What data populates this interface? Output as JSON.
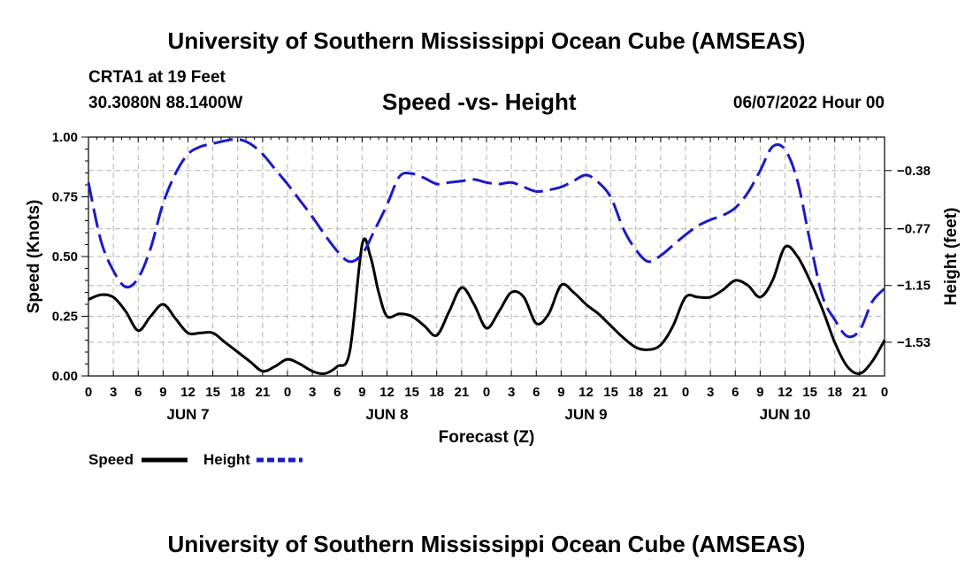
{
  "header": {
    "title": "University of Southern Mississippi Ocean Cube (AMSEAS)",
    "station": "CRTA1 at 19 Feet",
    "coords": "30.3080N  88.1400W",
    "chart_title": "Speed -vs- Height",
    "date": "06/07/2022 Hour 00"
  },
  "footer": {
    "title": "University of Southern Mississippi Ocean Cube (AMSEAS)"
  },
  "legend": {
    "speed_label": "Speed",
    "height_label": "Height"
  },
  "colors": {
    "speed": "#000000",
    "height": "#1a1ac8",
    "grid": "#b4b4b4"
  },
  "chart_data": {
    "type": "line",
    "title": "Speed -vs- Height",
    "xlabel": "Forecast (Z)",
    "ylabel": "Speed (Knots)",
    "y2label": "Height (feet)",
    "xlim": [
      0,
      96
    ],
    "ylim": [
      0,
      1.0
    ],
    "y2lim": [
      -1.756,
      -0.156
    ],
    "x_ticks": [
      0,
      3,
      6,
      9,
      12,
      15,
      18,
      21,
      24,
      27,
      30,
      33,
      36,
      39,
      42,
      45,
      48,
      51,
      54,
      57,
      60,
      63,
      66,
      69,
      72,
      75,
      78,
      81,
      84,
      87,
      90,
      93,
      96
    ],
    "x_tick_labels": [
      "0",
      "3",
      "6",
      "9",
      "12",
      "15",
      "18",
      "21",
      "0",
      "3",
      "6",
      "9",
      "12",
      "15",
      "18",
      "21",
      "0",
      "3",
      "6",
      "9",
      "12",
      "15",
      "18",
      "21",
      "0",
      "3",
      "6",
      "9",
      "12",
      "15",
      "18",
      "21",
      "0"
    ],
    "day_labels": [
      {
        "label": "JUN 7",
        "x": 12
      },
      {
        "label": "JUN 8",
        "x": 36
      },
      {
        "label": "JUN 9",
        "x": 60
      },
      {
        "label": "JUN 10",
        "x": 84
      }
    ],
    "y_ticks": [
      0.0,
      0.25,
      0.5,
      0.75,
      1.0
    ],
    "y_tick_labels": [
      "0.00",
      "0.25",
      "0.50",
      "0.75",
      "1.00"
    ],
    "y2_ticks": [
      -0.38,
      -0.77,
      -1.15,
      -1.53
    ],
    "y2_tick_labels": [
      "−0.38",
      "−0.77",
      "−1.15",
      "−1.53"
    ],
    "grid": true,
    "series": [
      {
        "name": "Speed",
        "axis": "left",
        "style": "solid",
        "x": [
          0,
          1.5,
          3,
          4.5,
          6,
          7.5,
          9,
          10.5,
          12,
          13.5,
          15,
          16.5,
          18,
          19.5,
          21,
          22.5,
          24,
          25.5,
          27,
          28.5,
          30,
          31.5,
          33,
          34,
          35,
          36,
          37.5,
          39,
          40.5,
          42,
          43.5,
          45,
          46.5,
          48,
          49.5,
          51,
          52.5,
          54,
          55.5,
          57,
          58.5,
          60,
          61.5,
          63,
          64.5,
          66,
          67.5,
          69,
          70.5,
          72,
          73.5,
          75,
          76.5,
          78,
          79.5,
          81,
          82.5,
          84,
          85.5,
          87,
          88.5,
          90,
          91.5,
          93,
          94.5,
          96
        ],
        "values": [
          0.32,
          0.34,
          0.33,
          0.27,
          0.19,
          0.25,
          0.3,
          0.24,
          0.18,
          0.18,
          0.18,
          0.14,
          0.1,
          0.06,
          0.02,
          0.04,
          0.07,
          0.05,
          0.02,
          0.01,
          0.04,
          0.1,
          0.55,
          0.5,
          0.35,
          0.25,
          0.26,
          0.25,
          0.21,
          0.17,
          0.27,
          0.37,
          0.3,
          0.2,
          0.27,
          0.35,
          0.33,
          0.22,
          0.26,
          0.38,
          0.35,
          0.3,
          0.26,
          0.21,
          0.16,
          0.12,
          0.11,
          0.13,
          0.21,
          0.33,
          0.33,
          0.33,
          0.36,
          0.4,
          0.38,
          0.33,
          0.4,
          0.54,
          0.5,
          0.4,
          0.28,
          0.14,
          0.04,
          0.01,
          0.06,
          0.15
        ]
      },
      {
        "name": "Height",
        "axis": "right",
        "style": "dashed",
        "x": [
          0,
          1.5,
          3,
          4.5,
          6,
          7.5,
          9,
          10.5,
          12,
          13.5,
          15,
          16.5,
          18,
          19.5,
          21,
          22.5,
          24,
          25.5,
          27,
          28.5,
          30,
          31.5,
          33,
          34.5,
          36,
          37.5,
          39,
          40.5,
          42,
          43.5,
          45,
          46.5,
          48,
          49.5,
          51,
          52.5,
          54,
          55.5,
          57,
          58.5,
          60,
          61.5,
          63,
          64.5,
          66,
          67.5,
          69,
          70.5,
          72,
          73.5,
          75,
          76.5,
          78,
          79.5,
          81,
          82.5,
          84,
          85.5,
          87,
          88.5,
          90,
          91.5,
          93,
          94.5,
          96
        ],
        "values": [
          -0.46,
          -0.85,
          -1.05,
          -1.16,
          -1.1,
          -0.9,
          -0.6,
          -0.4,
          -0.27,
          -0.22,
          -0.2,
          -0.18,
          -0.17,
          -0.2,
          -0.27,
          -0.37,
          -0.47,
          -0.58,
          -0.69,
          -0.81,
          -0.92,
          -0.99,
          -0.94,
          -0.78,
          -0.61,
          -0.42,
          -0.4,
          -0.43,
          -0.47,
          -0.46,
          -0.45,
          -0.44,
          -0.46,
          -0.47,
          -0.46,
          -0.49,
          -0.52,
          -0.51,
          -0.49,
          -0.45,
          -0.41,
          -0.46,
          -0.56,
          -0.77,
          -0.91,
          -0.99,
          -0.95,
          -0.88,
          -0.81,
          -0.75,
          -0.71,
          -0.68,
          -0.63,
          -0.53,
          -0.38,
          -0.22,
          -0.24,
          -0.45,
          -0.85,
          -1.22,
          -1.38,
          -1.49,
          -1.45,
          -1.26,
          -1.17
        ]
      }
    ]
  }
}
